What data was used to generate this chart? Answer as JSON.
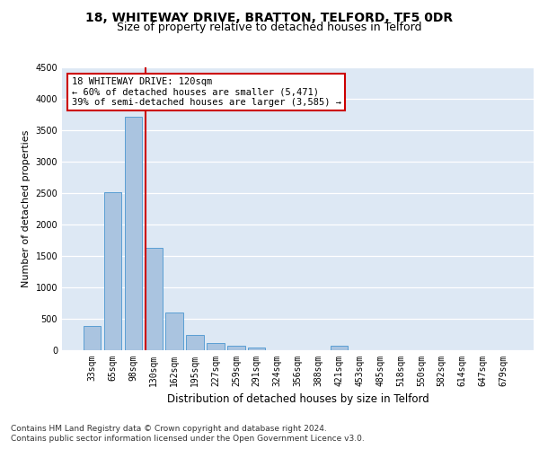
{
  "title_line1": "18, WHITEWAY DRIVE, BRATTON, TELFORD, TF5 0DR",
  "title_line2": "Size of property relative to detached houses in Telford",
  "xlabel": "Distribution of detached houses by size in Telford",
  "ylabel": "Number of detached properties",
  "categories": [
    "33sqm",
    "65sqm",
    "98sqm",
    "130sqm",
    "162sqm",
    "195sqm",
    "227sqm",
    "259sqm",
    "291sqm",
    "324sqm",
    "356sqm",
    "388sqm",
    "421sqm",
    "453sqm",
    "485sqm",
    "518sqm",
    "550sqm",
    "582sqm",
    "614sqm",
    "647sqm",
    "679sqm"
  ],
  "values": [
    380,
    2510,
    3720,
    1630,
    600,
    240,
    110,
    65,
    45,
    0,
    0,
    0,
    75,
    0,
    0,
    0,
    0,
    0,
    0,
    0,
    0
  ],
  "bar_color": "#aac4e0",
  "bar_edge_color": "#5a9fd4",
  "vline_x": 2.6,
  "vline_color": "#cc0000",
  "annotation_text": "18 WHITEWAY DRIVE: 120sqm\n← 60% of detached houses are smaller (5,471)\n39% of semi-detached houses are larger (3,585) →",
  "annotation_box_color": "#ffffff",
  "annotation_box_edge": "#cc0000",
  "ylim": [
    0,
    4500
  ],
  "yticks": [
    0,
    500,
    1000,
    1500,
    2000,
    2500,
    3000,
    3500,
    4000,
    4500
  ],
  "background_color": "#dde8f4",
  "footer_line1": "Contains HM Land Registry data © Crown copyright and database right 2024.",
  "footer_line2": "Contains public sector information licensed under the Open Government Licence v3.0.",
  "title_fontsize": 10,
  "subtitle_fontsize": 9,
  "xlabel_fontsize": 8.5,
  "ylabel_fontsize": 8,
  "tick_fontsize": 7,
  "footer_fontsize": 6.5,
  "annot_fontsize": 7.5
}
